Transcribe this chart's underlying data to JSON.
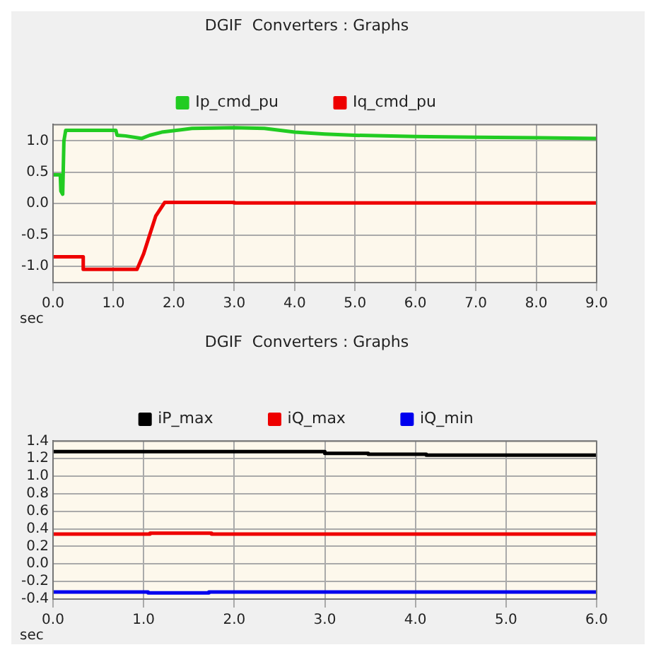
{
  "chart_data": [
    {
      "type": "line",
      "title": "DGIF  Converters : Graphs",
      "xlabel": "sec",
      "legend": "top",
      "grid": true,
      "xlim": [
        0,
        9
      ],
      "xticks": [
        {
          "value": 0,
          "label": "0.0"
        },
        {
          "value": 1,
          "label": "1.0"
        },
        {
          "value": 2,
          "label": "2.0"
        },
        {
          "value": 3,
          "label": "3.0"
        },
        {
          "value": 4,
          "label": "4.0"
        },
        {
          "value": 5,
          "label": "5.0"
        },
        {
          "value": 6,
          "label": "6.0"
        },
        {
          "value": 7,
          "label": "7.0"
        },
        {
          "value": 8,
          "label": "8.0"
        },
        {
          "value": 9,
          "label": "9.0"
        }
      ],
      "ylim": [
        -1.26,
        1.26
      ],
      "yticks": [
        {
          "value": -1,
          "label": "-1.0"
        },
        {
          "value": -0.5,
          "label": "-0.5"
        },
        {
          "value": 0,
          "label": "0.0"
        },
        {
          "value": 0.5,
          "label": "0.5"
        },
        {
          "value": 1,
          "label": "1.0"
        }
      ],
      "series": [
        {
          "name": "Ip_cmd_pu",
          "color": "#22cc22",
          "x": [
            0,
            0.12,
            0.13,
            0.16,
            0.18,
            0.21,
            1.04,
            1.06,
            1.2,
            1.47,
            1.6,
            1.8,
            1.97,
            2.3,
            3.0,
            3.5,
            4.0,
            4.5,
            5.0,
            6.0,
            7.0,
            8.0,
            9.0
          ],
          "values": [
            0.46,
            0.46,
            0.2,
            0.15,
            1.0,
            1.17,
            1.17,
            1.09,
            1.08,
            1.04,
            1.09,
            1.14,
            1.16,
            1.2,
            1.21,
            1.2,
            1.14,
            1.11,
            1.09,
            1.07,
            1.06,
            1.05,
            1.04
          ]
        },
        {
          "name": "Iq_cmd_pu",
          "color": "#ee0000",
          "x": [
            0,
            0.5,
            0.5,
            1.39,
            1.5,
            1.6,
            1.7,
            1.85,
            3.0,
            3.0,
            9.0
          ],
          "values": [
            -0.85,
            -0.85,
            -1.05,
            -1.05,
            -0.8,
            -0.5,
            -0.2,
            0.02,
            0.02,
            0.01,
            0.01
          ]
        }
      ]
    },
    {
      "type": "line",
      "title": "DGIF  Converters : Graphs",
      "xlabel": "sec",
      "legend": "top",
      "grid": true,
      "xlim": [
        0,
        6
      ],
      "xticks": [
        {
          "value": 0,
          "label": "0.0"
        },
        {
          "value": 1,
          "label": "1.0"
        },
        {
          "value": 2,
          "label": "2.0"
        },
        {
          "value": 3,
          "label": "3.0"
        },
        {
          "value": 4,
          "label": "4.0"
        },
        {
          "value": 5,
          "label": "5.0"
        },
        {
          "value": 6,
          "label": "6.0"
        }
      ],
      "ylim": [
        -0.4,
        1.4
      ],
      "yticks": [
        {
          "value": -0.4,
          "label": "-0.4"
        },
        {
          "value": -0.2,
          "label": "-0.2"
        },
        {
          "value": 0,
          "label": "0.0"
        },
        {
          "value": 0.2,
          "label": "0.2"
        },
        {
          "value": 0.4,
          "label": "0.4"
        },
        {
          "value": 0.6,
          "label": "0.6"
        },
        {
          "value": 0.8,
          "label": "0.8"
        },
        {
          "value": 1,
          "label": "1.0"
        },
        {
          "value": 1.2,
          "label": "1.2"
        },
        {
          "value": 1.4,
          "label": "1.4"
        }
      ],
      "series": [
        {
          "name": "iP_max",
          "color": "#000000",
          "x": [
            0,
            3.0,
            3.0,
            3.48,
            3.48,
            4.12,
            4.12,
            6.0
          ],
          "values": [
            1.28,
            1.28,
            1.26,
            1.26,
            1.25,
            1.25,
            1.24,
            1.24
          ]
        },
        {
          "name": "iQ_max",
          "color": "#ee0000",
          "x": [
            0,
            1.07,
            1.07,
            1.75,
            1.75,
            6.0
          ],
          "values": [
            0.34,
            0.34,
            0.35,
            0.35,
            0.34,
            0.34
          ]
        },
        {
          "name": "iQ_min",
          "color": "#0000ee",
          "x": [
            0,
            1.05,
            1.05,
            1.72,
            1.72,
            6.0
          ],
          "values": [
            -0.32,
            -0.32,
            -0.33,
            -0.33,
            -0.32,
            -0.32
          ]
        }
      ]
    }
  ]
}
